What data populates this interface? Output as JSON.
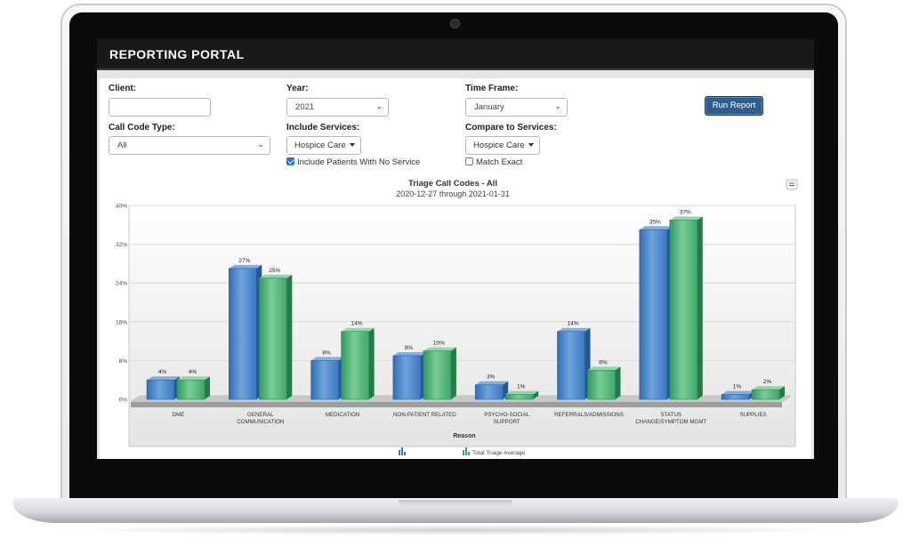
{
  "app": {
    "title": "REPORTING PORTAL"
  },
  "filters": {
    "client_label": "Client:",
    "client_value": "",
    "year_label": "Year:",
    "year_value": "2021",
    "timeframe_label": "Time Frame:",
    "timeframe_value": "January",
    "run_button": "Run Report",
    "callcode_label": "Call Code Type:",
    "callcode_value": "All",
    "include_label": "Include Services:",
    "include_value": "Hospice Care",
    "compare_label": "Compare to Services:",
    "compare_value": "Hospice Care",
    "include_no_service_label": "Include Patients With No Service",
    "include_no_service_checked": true,
    "match_exact_label": "Match Exact",
    "match_exact_checked": false
  },
  "colors": {
    "blue": "#3a78c0",
    "green": "#3fa76b",
    "header": "#191919",
    "button": "#2e5e8f"
  },
  "chart_data": {
    "type": "bar",
    "title": "Triage Call Codes - All",
    "subtitle": "2020-12-27 through 2021-01-31",
    "xlabel": "Reason",
    "ylabel": "",
    "ylim": [
      0,
      40
    ],
    "yticks": [
      "0%",
      "8%",
      "16%",
      "24%",
      "32%",
      "40%"
    ],
    "ytick_values": [
      0,
      8,
      16,
      24,
      32,
      40
    ],
    "grid": true,
    "categories": [
      "DME",
      "GENERAL COMMUNICATION",
      "MEDICATION",
      "NON-PATIENT RELATED",
      "PSYCHO-SOCIAL SUPPORT",
      "REFERRALS/ADMISSIONS",
      "STATUS CHANGE/SYMPTOM MGMT",
      "SUPPLIES"
    ],
    "category_lines": [
      [
        "DME"
      ],
      [
        "GENERAL",
        "COMMUNICATION"
      ],
      [
        "MEDICATION"
      ],
      [
        "NON-PATIENT RELATED"
      ],
      [
        "PSYCHO-SOCIAL",
        "SUPPORT"
      ],
      [
        "REFERRALS/ADMISSIONS"
      ],
      [
        "STATUS",
        "CHANGE/SYMPTOM MGMT"
      ],
      [
        "SUPPLIES"
      ]
    ],
    "series": [
      {
        "name": "",
        "values": [
          4,
          27,
          8,
          9,
          3,
          14,
          35,
          1
        ],
        "labels": [
          "4%",
          "27%",
          "8%",
          "9%",
          "3%",
          "14%",
          "35%",
          "1%"
        ]
      },
      {
        "name": "Total Triage Average",
        "values": [
          4,
          25,
          14,
          10,
          1,
          6,
          37,
          2
        ],
        "labels": [
          "4%",
          "25%",
          "14%",
          "10%",
          "1%",
          "6%",
          "37%",
          "2%"
        ]
      }
    ],
    "legend_position": "bottom"
  }
}
